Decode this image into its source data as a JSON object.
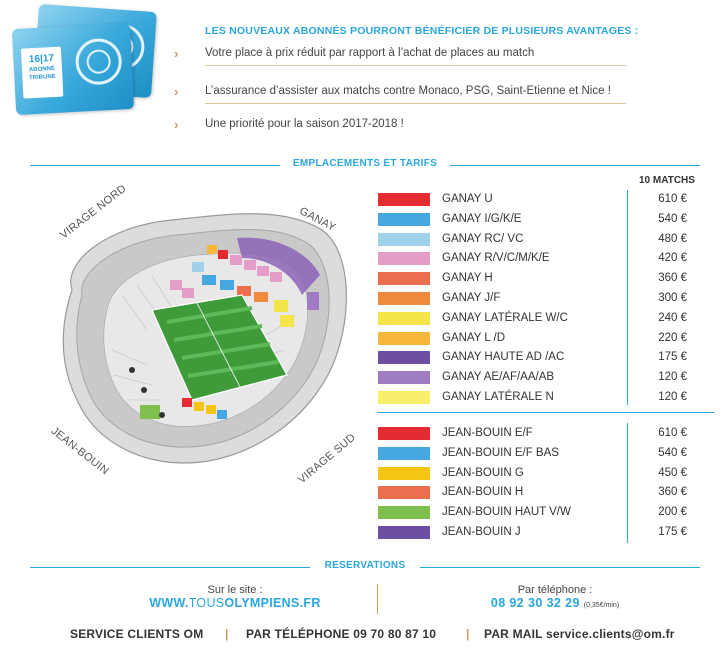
{
  "card": {
    "season": "16|17",
    "tier": "TRIBUNE",
    "subtitle": "ABONNÉ"
  },
  "advantages": {
    "title": "LES NOUVEAUX ABONNÉS POURRONT BÉNÉFICIER DE PLUSIEURS AVANTAGES :",
    "items": [
      "Votre place à prix réduit par rapport à l’achat de places au match",
      "L’assurance d’assister aux matchs contre Monaco, PSG, Saint-Etienne et Nice !",
      "Une priorité pour la saison 2017-2018 !"
    ]
  },
  "sections": {
    "locations": "EMPLACEMENTS ET TARIFS",
    "reservations": "RESERVATIONS"
  },
  "stadium": {
    "labels": {
      "virage_nord": "VIRAGE NORD",
      "ganay": "GANAY",
      "jean_bouin": "JEAN-BOUIN",
      "virage_sud": "VIRAGE SUD"
    }
  },
  "pricing": {
    "column_header": "10 MATCHS",
    "ganay": [
      {
        "name": "GANAY U",
        "price": "610 €",
        "color": "#e32b31"
      },
      {
        "name": "GANAY I/G/K/E",
        "price": "540 €",
        "color": "#46a8e0"
      },
      {
        "name": "GANAY RC/ VC",
        "price": "480 €",
        "color": "#9fd1ea"
      },
      {
        "name": "GANAY R/V/C/M/K/E",
        "price": "420 €",
        "color": "#e39dc7"
      },
      {
        "name": "GANAY H",
        "price": "360 €",
        "color": "#eb6f4e"
      },
      {
        "name": "GANAY J/F",
        "price": "300 €",
        "color": "#f08a3c"
      },
      {
        "name": "GANAY LATÉRALE W/C",
        "price": "240 €",
        "color": "#f4e54a"
      },
      {
        "name": "GANAY L /D",
        "price": "220 €",
        "color": "#f7b73a"
      },
      {
        "name": "GANAY HAUTE AD /AC",
        "price": "175 €",
        "color": "#6b4ea2"
      },
      {
        "name": "GANAY AE/AF/AA/AB",
        "price": "120 €",
        "color": "#a07cc4"
      },
      {
        "name": "GANAY LATÉRALE N",
        "price": "120 €",
        "color": "#f7ee6a"
      }
    ],
    "jean_bouin": [
      {
        "name": "JEAN-BOUIN E/F",
        "price": "610 €",
        "color": "#e32b31"
      },
      {
        "name": "JEAN-BOUIN E/F BAS",
        "price": "540 €",
        "color": "#46a8e0"
      },
      {
        "name": "JEAN-BOUIN G",
        "price": "450 €",
        "color": "#f5c415"
      },
      {
        "name": "JEAN-BOUIN H",
        "price": "360 €",
        "color": "#eb6f4e"
      },
      {
        "name": "JEAN-BOUIN HAUT V/W",
        "price": "200 €",
        "color": "#7fbf4d"
      },
      {
        "name": "JEAN-BOUIN J",
        "price": "175 €",
        "color": "#6b4ea2"
      }
    ]
  },
  "reservations": {
    "site_label": "Sur le site :",
    "site_prefix": "WWW.",
    "site_thin": "TOUS",
    "site_bold": "OLYMPIENS",
    "site_suffix": ".FR",
    "phone_label": "Par téléphone :",
    "phone_number": "08 92 30 32 29",
    "phone_rate": "(0,35€/min)"
  },
  "footer": {
    "service": "SERVICE CLIENTS OM",
    "phone": "PAR TÉLÉPHONE 09 70 80 87 10",
    "mail": "PAR MAIL service.clients@om.fr",
    "separator": "|"
  },
  "colors": {
    "accent": "#2aa6e0",
    "gold": "#c4a25d",
    "pitch": "#3f9a3a"
  }
}
